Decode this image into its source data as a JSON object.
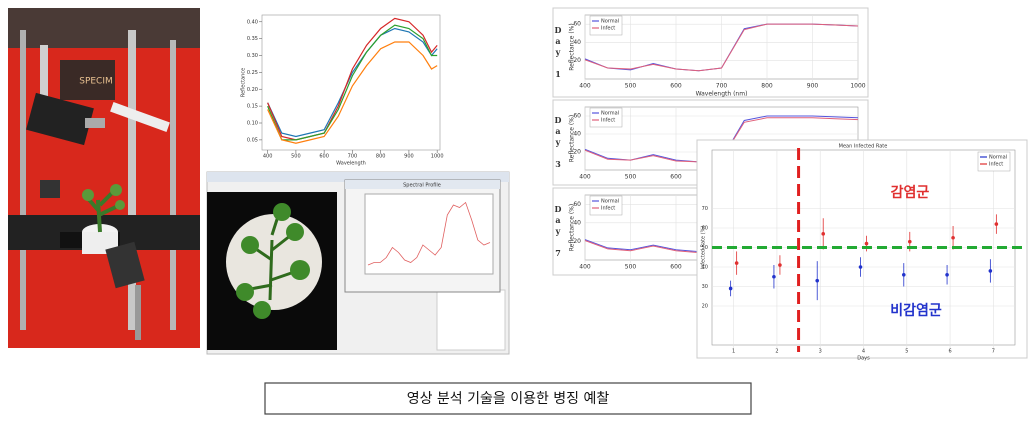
{
  "photo": {
    "camera_label": "SPECIM"
  },
  "reflectance_chart": {
    "type": "line",
    "y_label": "Reflectance",
    "x_label": "Wavelength",
    "x": [
      400,
      450,
      500,
      550,
      600,
      650,
      700,
      750,
      800,
      850,
      900,
      950,
      980,
      1000
    ],
    "xlim": [
      380,
      1010
    ],
    "ylim": [
      0.02,
      0.42
    ],
    "xticks": [
      400,
      500,
      600,
      700,
      800,
      900,
      1000
    ],
    "yticks": [
      0.05,
      {
        "value": 0.1,
        "label": "0.10"
      },
      0.15,
      {
        "value": 0.2,
        "label": "0.20"
      },
      0.25,
      {
        "value": 0.3,
        "label": "0.30"
      },
      0.35,
      {
        "value": 0.4,
        "label": "0.40"
      }
    ],
    "series": [
      {
        "color": "#1f77b4",
        "values": [
          0.16,
          0.07,
          0.06,
          0.07,
          0.08,
          0.16,
          0.25,
          0.31,
          0.36,
          0.38,
          0.37,
          0.34,
          0.3,
          0.32
        ]
      },
      {
        "color": "#d62728",
        "values": [
          0.16,
          0.06,
          0.05,
          0.06,
          0.07,
          0.15,
          0.26,
          0.33,
          0.38,
          0.41,
          0.4,
          0.36,
          0.31,
          0.33
        ]
      },
      {
        "color": "#2ca02c",
        "values": [
          0.15,
          0.05,
          0.05,
          0.06,
          0.07,
          0.14,
          0.24,
          0.31,
          0.36,
          0.39,
          0.38,
          0.35,
          0.3,
          0.3
        ]
      },
      {
        "color": "#ff7f0e",
        "values": [
          0.14,
          0.05,
          0.04,
          0.05,
          0.06,
          0.12,
          0.21,
          0.27,
          0.32,
          0.34,
          0.34,
          0.3,
          0.26,
          0.27
        ]
      }
    ]
  },
  "software": {
    "window_title": "Spectral Profile",
    "profile": {
      "color": "#e06060",
      "values": [
        2,
        3,
        3,
        5,
        9,
        7,
        4,
        3,
        5,
        10,
        8,
        6,
        9,
        22,
        26,
        25,
        27,
        20,
        12,
        10,
        11
      ]
    }
  },
  "day_charts": [
    {
      "type": "line",
      "label": "Day 1",
      "y_label": "Reflectance (%)",
      "x_label": "Wavelength (nm)",
      "grid": true,
      "x": [
        400,
        450,
        500,
        550,
        600,
        650,
        700,
        750,
        800,
        850,
        900,
        950,
        1000
      ],
      "xlim": [
        400,
        1000
      ],
      "ylim": [
        0,
        70
      ],
      "xticks": [
        400,
        500,
        600,
        700,
        800,
        900,
        1000
      ],
      "yticks": [
        20,
        40,
        60
      ],
      "series": [
        {
          "name": "Normal",
          "color": "#5555dd",
          "values": [
            22,
            12,
            10,
            17,
            11,
            9,
            12,
            55,
            60,
            60,
            60,
            59,
            58
          ]
        },
        {
          "name": "Infect",
          "color": "#e0607a",
          "values": [
            21,
            12,
            11,
            16,
            11,
            9,
            12,
            54,
            60,
            60,
            60,
            59,
            58
          ]
        }
      ]
    },
    {
      "type": "line",
      "label": "Day 3",
      "y_label": "Reflectance (%)",
      "grid": true,
      "x": [
        400,
        450,
        500,
        550,
        600,
        650,
        700,
        750,
        800,
        850,
        900,
        950,
        1000
      ],
      "xlim": [
        400,
        1000
      ],
      "ylim": [
        0,
        70
      ],
      "xticks": [
        400,
        500,
        600
      ],
      "yticks": [
        20,
        40,
        60
      ],
      "series": [
        {
          "name": "Normal",
          "color": "#5555dd",
          "values": [
            23,
            13,
            11,
            17,
            11,
            9,
            12,
            55,
            60,
            60,
            60,
            59,
            58
          ]
        },
        {
          "name": "Infect",
          "color": "#e0607a",
          "values": [
            22,
            12,
            11,
            16,
            10,
            9,
            12,
            53,
            58,
            58,
            58,
            57,
            56
          ]
        }
      ]
    },
    {
      "type": "line",
      "label": "Day 7",
      "y_label": "Reflectance (%)",
      "grid": true,
      "x": [
        400,
        450,
        500,
        550,
        600,
        650,
        700,
        750,
        800,
        850,
        900,
        950,
        1000
      ],
      "xlim": [
        400,
        1000
      ],
      "ylim": [
        0,
        70
      ],
      "xticks": [
        400,
        500,
        600
      ],
      "yticks": [
        20,
        40,
        60
      ],
      "series": [
        {
          "name": "Normal",
          "color": "#5555dd",
          "values": [
            22,
            13,
            11,
            16,
            11,
            9,
            12,
            55,
            60,
            60,
            60,
            59,
            58
          ]
        },
        {
          "name": "Infect",
          "color": "#e0607a",
          "values": [
            21,
            12,
            10,
            15,
            10,
            8,
            11,
            52,
            57,
            57,
            57,
            56,
            55
          ]
        }
      ]
    }
  ],
  "infection_chart": {
    "type": "scatter",
    "title": "Mean Infected Rate",
    "x_label": "Days",
    "y_label": "Infected Rate (%)",
    "grid": true,
    "x": [
      1,
      2,
      3,
      4,
      5,
      6,
      7
    ],
    "xlim": [
      0.5,
      7.5
    ],
    "ylim": [
      0,
      100
    ],
    "xticks": [
      1,
      2,
      3,
      4,
      5,
      6,
      7
    ],
    "yticks": [
      20,
      30,
      40,
      50,
      60,
      70
    ],
    "series": [
      {
        "name": "Normal",
        "color": "#2233cc",
        "values": [
          29,
          35,
          33,
          40,
          36,
          36,
          38
        ],
        "errors": [
          4,
          6,
          10,
          5,
          6,
          5,
          6
        ]
      },
      {
        "name": "Infect",
        "color": "#e03030",
        "values": [
          42,
          41,
          57,
          52,
          53,
          55,
          62
        ],
        "errors": [
          6,
          5,
          8,
          4,
          5,
          6,
          5
        ]
      }
    ],
    "threshold": 50,
    "threshold_color": "#22aa33",
    "divider": 2.5,
    "divider_color": "#e02020",
    "infected_label": "감염군",
    "normal_label": "비감염군"
  },
  "caption": "영상 분석 기술을 이용한 병징 예찰"
}
